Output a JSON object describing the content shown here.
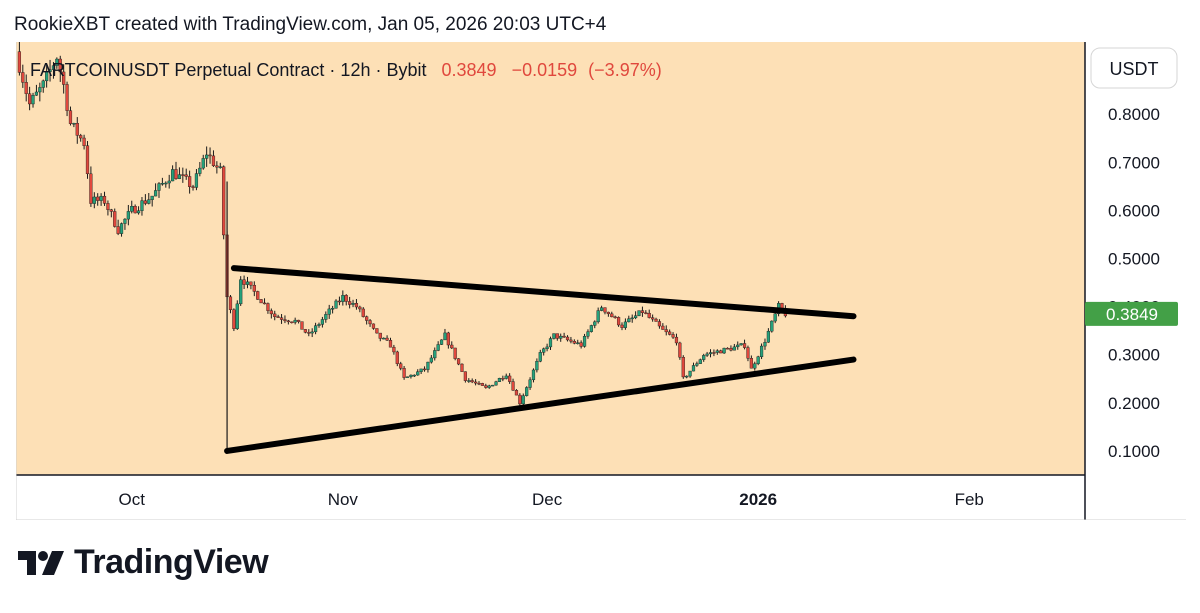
{
  "header": {
    "author_line": "RookieXBT created with TradingView.com, Jan 05, 2026 20:03 UTC+4"
  },
  "legend": {
    "symbol": "FARTCOINUSDT Perpetual Contract · 12h · Bybit",
    "last": "0.3849",
    "change": "−0.0159",
    "change_pct": "(−3.97%)"
  },
  "colors": {
    "plot_bg": "#fde0b6",
    "axis_bg": "#ffffff",
    "up": "#26a17b",
    "down": "#e0483d",
    "trendline": "#000000",
    "price_badge": "#43a047"
  },
  "brand": {
    "name": "TradingView",
    "icon": "tradingview-logo-icon"
  },
  "chart_data": {
    "type": "candlestick",
    "title": "FARTCOINUSDT Perpetual Contract · 12h · Bybit",
    "currency": "USDT",
    "last_price": 0.3849,
    "last_price_label": "0.3849",
    "y_axis": {
      "range": [
        0.05,
        0.95
      ],
      "ticks": [
        0.1,
        0.2,
        0.3,
        0.4,
        0.5,
        0.6,
        0.7,
        0.8
      ],
      "tick_labels": [
        "0.1000",
        "0.2000",
        "0.3000",
        "0.4000",
        "0.5000",
        "0.6000",
        "0.7000",
        "0.8000"
      ]
    },
    "x_axis": {
      "range": [
        "2025-09-14",
        "2026-02-18"
      ],
      "ticks": [
        {
          "date": "2025-10-01",
          "label": "Oct",
          "bold": false
        },
        {
          "date": "2025-11-01",
          "label": "Nov",
          "bold": false
        },
        {
          "date": "2025-12-01",
          "label": "Dec",
          "bold": false
        },
        {
          "date": "2026-01-01",
          "label": "2026",
          "bold": true
        },
        {
          "date": "2026-02-01",
          "label": "Feb",
          "bold": false
        }
      ]
    },
    "price_path": [
      [
        "2025-09-14",
        0.93
      ],
      [
        "2025-09-16",
        0.82
      ],
      [
        "2025-09-18",
        0.86
      ],
      [
        "2025-09-20",
        0.92
      ],
      [
        "2025-09-21",
        0.86
      ],
      [
        "2025-09-22",
        0.78
      ],
      [
        "2025-09-24",
        0.74
      ],
      [
        "2025-09-25",
        0.62
      ],
      [
        "2025-09-27",
        0.62
      ],
      [
        "2025-09-29",
        0.56
      ],
      [
        "2025-10-01",
        0.6
      ],
      [
        "2025-10-04",
        0.63
      ],
      [
        "2025-10-07",
        0.68
      ],
      [
        "2025-10-10",
        0.65
      ],
      [
        "2025-10-12",
        0.72
      ],
      [
        "2025-10-14",
        0.68
      ],
      [
        "2025-10-15",
        0.42
      ],
      [
        "2025-10-16",
        0.36
      ],
      [
        "2025-10-17",
        0.46
      ],
      [
        "2025-10-19",
        0.43
      ],
      [
        "2025-10-22",
        0.38
      ],
      [
        "2025-10-25",
        0.37
      ],
      [
        "2025-10-27",
        0.34
      ],
      [
        "2025-10-30",
        0.39
      ],
      [
        "2025-11-01",
        0.42
      ],
      [
        "2025-11-03",
        0.4
      ],
      [
        "2025-11-06",
        0.34
      ],
      [
        "2025-11-08",
        0.32
      ],
      [
        "2025-11-10",
        0.25
      ],
      [
        "2025-11-13",
        0.27
      ],
      [
        "2025-11-16",
        0.34
      ],
      [
        "2025-11-19",
        0.25
      ],
      [
        "2025-11-22",
        0.23
      ],
      [
        "2025-11-25",
        0.26
      ],
      [
        "2025-11-27",
        0.2
      ],
      [
        "2025-11-30",
        0.3
      ],
      [
        "2025-12-02",
        0.34
      ],
      [
        "2025-12-06",
        0.32
      ],
      [
        "2025-12-09",
        0.4
      ],
      [
        "2025-12-12",
        0.36
      ],
      [
        "2025-12-15",
        0.39
      ],
      [
        "2025-12-18",
        0.35
      ],
      [
        "2025-12-20",
        0.33
      ],
      [
        "2025-12-21",
        0.25
      ],
      [
        "2025-12-24",
        0.3
      ],
      [
        "2025-12-27",
        0.31
      ],
      [
        "2025-12-30",
        0.32
      ],
      [
        "2025-12-31",
        0.27
      ],
      [
        "2026-01-02",
        0.33
      ],
      [
        "2026-01-04",
        0.4
      ],
      [
        "2026-01-05",
        0.3849
      ]
    ],
    "annotations": [
      {
        "type": "trendline",
        "name": "upper",
        "from": [
          "2025-10-16",
          0.48
        ],
        "to": [
          "2026-01-15",
          0.38
        ]
      },
      {
        "type": "trendline",
        "name": "lower",
        "from": [
          "2025-10-15",
          0.1
        ],
        "to": [
          "2026-01-15",
          0.29
        ]
      }
    ]
  }
}
